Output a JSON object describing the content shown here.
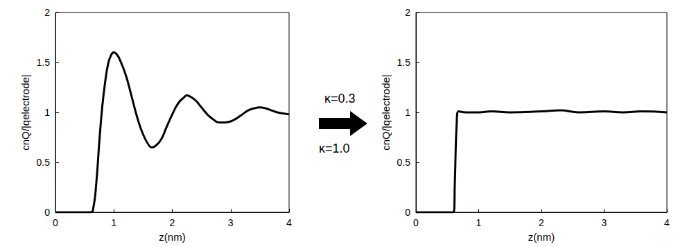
{
  "chart_data": [
    {
      "type": "line",
      "xlabel": "z(nm)",
      "ylabel": "cnQ/|qelectrode|",
      "color": "#000000",
      "xlim": [
        0,
        4
      ],
      "ylim": [
        0,
        2
      ],
      "xticks": [
        0,
        1,
        2,
        3,
        4
      ],
      "yticks": [
        0,
        0.5,
        1,
        1.5,
        2
      ],
      "x": [
        0,
        0.6,
        0.65,
        0.7,
        0.75,
        0.8,
        0.85,
        0.9,
        0.95,
        1.0,
        1.05,
        1.1,
        1.2,
        1.3,
        1.4,
        1.5,
        1.6,
        1.65,
        1.7,
        1.8,
        1.9,
        2.0,
        2.1,
        2.2,
        2.25,
        2.3,
        2.4,
        2.5,
        2.6,
        2.7,
        2.8,
        2.9,
        3.0,
        3.1,
        3.2,
        3.3,
        3.4,
        3.5,
        3.6,
        3.7,
        3.8,
        3.9,
        4.0
      ],
      "values": [
        0,
        0,
        0.05,
        0.3,
        0.7,
        1.05,
        1.3,
        1.48,
        1.57,
        1.6,
        1.58,
        1.53,
        1.38,
        1.17,
        0.95,
        0.78,
        0.67,
        0.65,
        0.66,
        0.72,
        0.85,
        0.98,
        1.09,
        1.15,
        1.17,
        1.16,
        1.12,
        1.05,
        0.98,
        0.93,
        0.9,
        0.9,
        0.91,
        0.94,
        0.98,
        1.02,
        1.04,
        1.05,
        1.04,
        1.02,
        1.0,
        0.99,
        0.98
      ]
    },
    {
      "type": "line",
      "xlabel": "z(nm)",
      "ylabel": "cnQ/|qelectrode|",
      "color": "#000000",
      "xlim": [
        0,
        4
      ],
      "ylim": [
        0,
        2
      ],
      "xticks": [
        0,
        1,
        2,
        3,
        4
      ],
      "yticks": [
        0,
        0.5,
        1,
        1.5,
        2
      ],
      "x": [
        0,
        0.6,
        0.62,
        0.65,
        0.68,
        0.8,
        1.0,
        1.2,
        1.5,
        2.0,
        2.3,
        2.6,
        3.0,
        3.3,
        3.6,
        4.0
      ],
      "values": [
        0,
        0,
        0.3,
        0.9,
        1.01,
        1.0,
        1.0,
        1.01,
        1.0,
        1.01,
        1.02,
        1.0,
        1.01,
        1.0,
        1.01,
        1.0
      ]
    }
  ],
  "annotations": [
    "κ=0.3",
    "κ=1.0"
  ]
}
